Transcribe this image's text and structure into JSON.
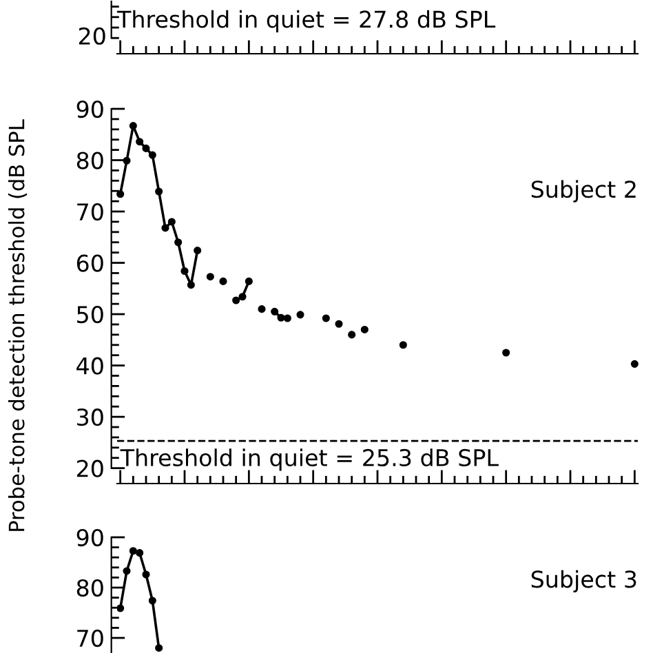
{
  "chart_data": [
    {
      "type": "other",
      "annotations": [
        "20",
        "Threshold in quiet = 27.8 dB SPL"
      ]
    },
    {
      "type": "line",
      "marker": "circle",
      "categories": [
        null,
        null,
        null,
        null,
        null,
        null,
        null,
        null,
        null,
        null,
        null,
        null,
        null,
        null,
        null,
        null,
        null,
        null,
        null,
        null,
        null,
        null,
        null,
        null,
        null,
        null,
        null,
        null,
        null,
        null,
        null,
        null,
        null,
        null,
        null,
        null,
        null,
        null,
        null,
        null,
        null,
        null,
        null,
        null,
        null,
        null,
        null,
        null,
        null,
        null,
        null,
        null,
        null,
        null,
        null,
        null,
        null,
        null,
        null,
        null,
        null,
        null,
        null,
        null,
        null,
        null,
        null,
        null,
        null,
        null,
        null,
        null,
        null,
        null,
        null,
        null,
        null,
        null,
        null,
        null,
        null
      ],
      "ylim": [
        17,
        90
      ],
      "yticks": [
        20,
        {
          "value": 22,
          "label": null
        },
        {
          "value": 24,
          "label": null
        },
        {
          "value": 26,
          "label": null
        },
        {
          "value": 28,
          "label": null
        },
        30,
        {
          "value": 32,
          "label": null
        },
        {
          "value": 34,
          "label": null
        },
        {
          "value": 36,
          "label": null
        },
        {
          "value": 38,
          "label": null
        },
        40,
        {
          "value": 42,
          "label": null
        },
        {
          "value": 44,
          "label": null
        },
        {
          "value": 46,
          "label": null
        },
        {
          "value": 48,
          "label": null
        },
        50,
        {
          "value": 52,
          "label": null
        },
        {
          "value": 54,
          "label": null
        },
        {
          "value": 56,
          "label": null
        },
        {
          "value": 58,
          "label": null
        },
        60,
        {
          "value": 62,
          "label": null
        },
        {
          "value": 64,
          "label": null
        },
        {
          "value": 66,
          "label": null
        },
        {
          "value": 68,
          "label": null
        },
        70,
        {
          "value": 72,
          "label": null
        },
        {
          "value": 74,
          "label": null
        },
        {
          "value": 76,
          "label": null
        },
        {
          "value": 78,
          "label": null
        },
        80,
        {
          "value": 82,
          "label": null
        },
        {
          "value": 84,
          "label": null
        },
        {
          "value": 86,
          "label": null
        },
        {
          "value": 88,
          "label": null
        },
        90
      ],
      "title": "Subject 2",
      "ylabel": "Probe-tone detection threshold (dB SPL",
      "tick_labels": "y",
      "ref_lines": [
        {
          "axis": "y",
          "value": 25.3,
          "label": "Threshold in quiet = 25.3 dB SPL",
          "line_style": "dashed",
          "color": "#000000"
        }
      ],
      "series": [
        {
          "color": "#000000",
          "values": [
            73.4,
            79.9,
            86.7,
            83.6,
            82.3,
            81.0,
            73.9,
            66.8,
            68.0,
            64.0,
            58.4,
            55.7,
            62.4,
            null,
            57.3,
            null,
            56.4,
            null,
            52.7,
            53.4,
            56.4,
            null,
            51.0,
            null,
            50.5,
            49.3,
            49.2,
            null,
            49.9,
            null,
            null,
            null,
            49.2,
            null,
            48.1,
            null,
            46.0,
            null,
            47.0,
            null,
            null,
            null,
            null,
            null,
            44.0,
            null,
            null,
            null,
            null,
            null,
            null,
            null,
            null,
            null,
            null,
            null,
            null,
            null,
            null,
            null,
            42.5,
            null,
            null,
            null,
            null,
            null,
            null,
            null,
            null,
            null,
            null,
            null,
            null,
            null,
            null,
            null,
            null,
            null,
            null,
            null,
            40.3
          ]
        }
      ]
    },
    {
      "type": "line",
      "marker": "circle",
      "categories": [
        null,
        null,
        null,
        null,
        null,
        null,
        null,
        null,
        null,
        null,
        null,
        null,
        null,
        null,
        null,
        null,
        null,
        null,
        null,
        null,
        null,
        null,
        null,
        null,
        null,
        null,
        null,
        null,
        null,
        null,
        null,
        null,
        null,
        null,
        null,
        null,
        null,
        null,
        null,
        null,
        null,
        null,
        null,
        null,
        null,
        null,
        null,
        null,
        null,
        null,
        null,
        null,
        null,
        null,
        null,
        null,
        null,
        null,
        null,
        null,
        null,
        null,
        null,
        null,
        null,
        null,
        null,
        null,
        null,
        null,
        null,
        null,
        null,
        null,
        null,
        null,
        null,
        null,
        null,
        null,
        null
      ],
      "ylim": [
        67,
        90
      ],
      "yticks": [
        70,
        {
          "value": 72,
          "label": null
        },
        {
          "value": 74,
          "label": null
        },
        {
          "value": 76,
          "label": null
        },
        {
          "value": 78,
          "label": null
        },
        80,
        {
          "value": 82,
          "label": null
        },
        {
          "value": 84,
          "label": null
        },
        {
          "value": 86,
          "label": null
        },
        {
          "value": 88,
          "label": null
        },
        90
      ],
      "title": "Subject 3",
      "tick_labels": "y",
      "series": [
        {
          "color": "#000000",
          "values": [
            75.9,
            83.3,
            87.3,
            86.9,
            82.6,
            77.4,
            68.0,
            null,
            null,
            null,
            null,
            null,
            null,
            null,
            null,
            null,
            null,
            null,
            null,
            null,
            null,
            null,
            null,
            null,
            null,
            null,
            null,
            null,
            null,
            null,
            null,
            null,
            null,
            null,
            null,
            null,
            null,
            null,
            null,
            null,
            null,
            null,
            null,
            null,
            null,
            null,
            null,
            null,
            null,
            null,
            null,
            null,
            null,
            null,
            null,
            null,
            null,
            null,
            null,
            null,
            null,
            null,
            null,
            null,
            null,
            null,
            null,
            null,
            null,
            null,
            null,
            null,
            null,
            null,
            null,
            null,
            null,
            null,
            null,
            null,
            null
          ]
        }
      ]
    }
  ]
}
